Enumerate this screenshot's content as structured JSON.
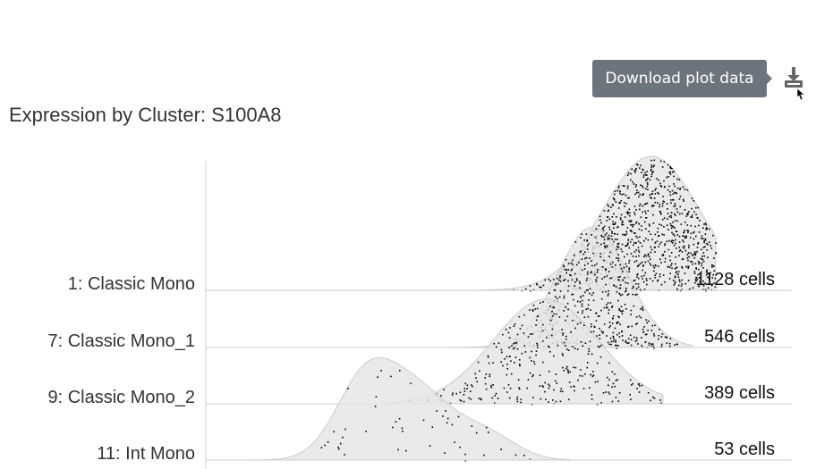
{
  "toolbar": {
    "tooltip_text": "Download plot data",
    "download_icon": "download-icon"
  },
  "colors": {
    "fill": "#e6e6e6",
    "stroke": "#cccccc",
    "points": "#000000",
    "tooltip_bg": "#6c757d",
    "icon": "#666666"
  },
  "chart_data": {
    "type": "ridgeline",
    "title": "Expression by Cluster: S100A8",
    "xlabel": "",
    "ylabel": "",
    "grid": false,
    "series": [
      {
        "name": "1: Classic Mono",
        "count_label": "1128 cells",
        "peak": 0.76,
        "width": 0.082,
        "height": 1.0,
        "start": 0.46,
        "end": 0.87,
        "points": 900,
        "seed": 1
      },
      {
        "name": "7: Classic Mono_1",
        "count_label": "546 cells",
        "peak": 0.66,
        "width": 0.06,
        "height": 0.9,
        "start": 0.41,
        "end": 0.83,
        "points": 480,
        "seed": 2
      },
      {
        "name": "9: Classic Mono_2",
        "count_label": "389 cells",
        "peak": 0.58,
        "width": 0.09,
        "height": 0.78,
        "start": 0.31,
        "end": 0.78,
        "points": 300,
        "seed": 3
      },
      {
        "name": "11: Int Mono",
        "count_label": "53 cells",
        "peak": 0.29,
        "width": 0.11,
        "height": 0.55,
        "start": 0.0,
        "end": 0.62,
        "points": 50,
        "seed": 4
      }
    ]
  }
}
